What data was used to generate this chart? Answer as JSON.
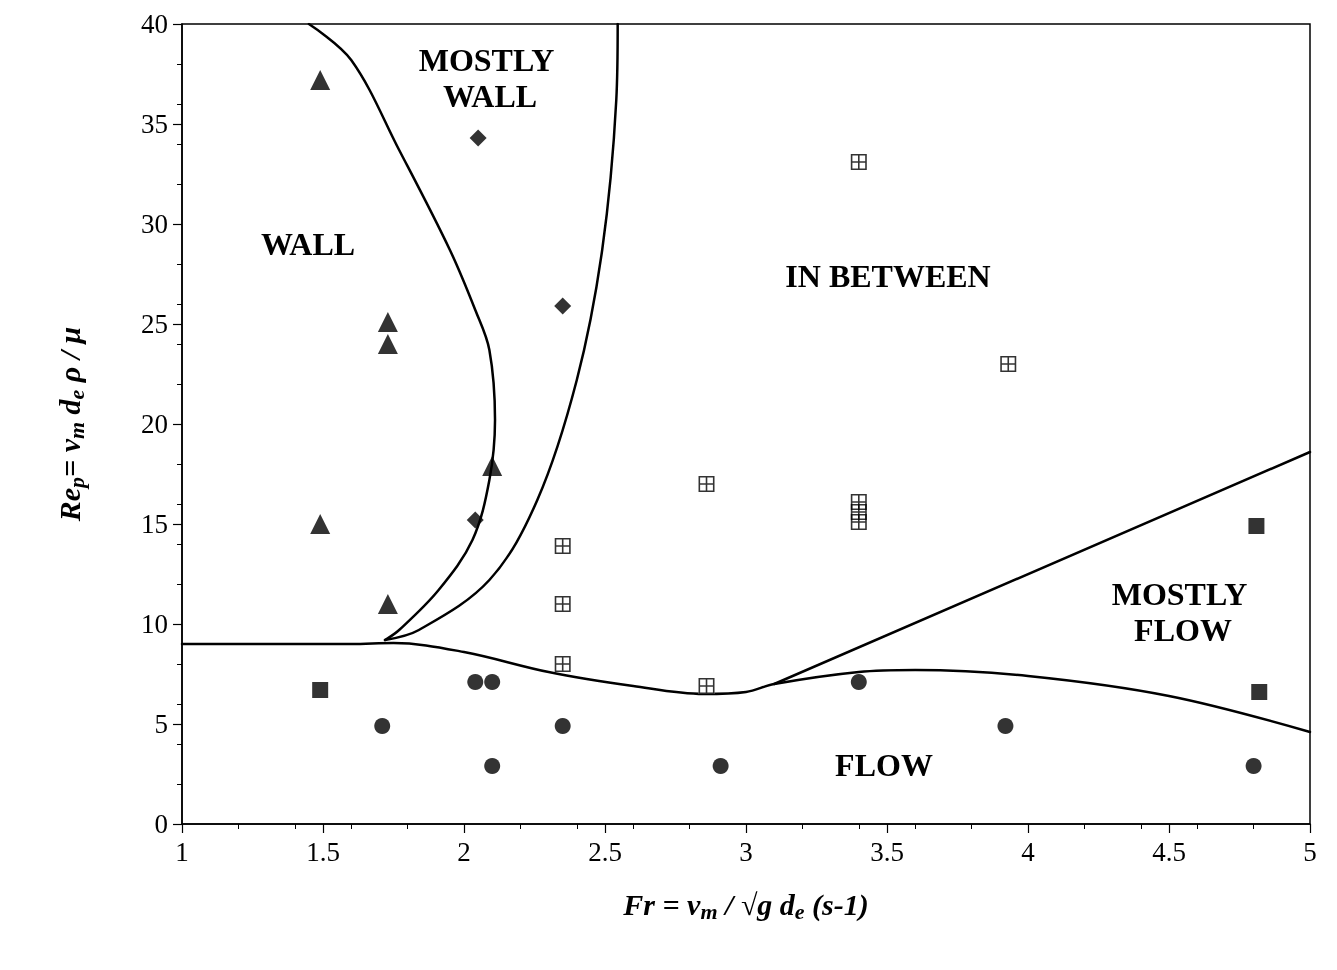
{
  "chart_data": {
    "type": "scatter",
    "xlabel": "Fr = v$_{m}$ / √g d$_{e}$ (s-1)",
    "ylabel": "Re$_{p}$= v$_{m}$ d$_{e}$ ρ / μ",
    "xlim": [
      1,
      5
    ],
    "xticks": [
      1,
      1.5,
      2,
      2.5,
      3,
      3.5,
      4,
      4.5,
      5
    ],
    "ylim": [
      0,
      40
    ],
    "yticks": [
      0,
      5,
      10,
      15,
      20,
      25,
      30,
      35,
      40
    ],
    "grid": false,
    "series": [
      {
        "marker": "triangle",
        "color": "#000000",
        "x": [
          1.49,
          1.73,
          1.73,
          2.1,
          1.49,
          1.73
        ],
        "values": [
          37.2,
          25.1,
          24.0,
          17.9,
          15.0,
          11.0
        ]
      },
      {
        "marker": "diamond",
        "color": "#000000",
        "x": [
          2.05,
          2.35,
          2.04
        ],
        "values": [
          34.3,
          25.9,
          15.2
        ]
      },
      {
        "marker": "cross",
        "color": "#000000",
        "x": [
          3.4,
          3.93,
          2.86,
          3.4,
          3.4,
          3.4,
          2.35,
          2.35,
          2.35,
          2.86
        ],
        "values": [
          33.1,
          23.0,
          17.0,
          16.1,
          15.6,
          15.1,
          13.9,
          11.0,
          8.0,
          6.9
        ]
      },
      {
        "marker": "square",
        "color": "#000000",
        "x": [
          4.81,
          4.82,
          1.49
        ],
        "values": [
          14.9,
          6.6,
          6.7
        ]
      },
      {
        "marker": "circle",
        "color": "#000000",
        "x": [
          1.71,
          2.04,
          2.1,
          2.1,
          2.35,
          2.91,
          3.4,
          3.92,
          4.8
        ],
        "values": [
          4.9,
          7.1,
          7.1,
          2.9,
          4.9,
          2.9,
          7.1,
          4.9,
          2.9
        ]
      },
      {
        "type": "line",
        "marker": "none",
        "color": "#000000",
        "x": [
          1.45,
          1.6,
          1.77,
          1.95,
          2.04,
          2.09,
          2.11,
          2.09,
          2.03,
          1.91,
          1.77,
          1.72
        ],
        "values": [
          40,
          38.2,
          33.7,
          28.7,
          25.7,
          23.7,
          20.2,
          17.2,
          14.2,
          11.7,
          9.7,
          9.2
        ]
      },
      {
        "type": "line",
        "marker": "none",
        "color": "#000000",
        "x": [
          1.72,
          1.84,
          2.09,
          2.26,
          2.4,
          2.49,
          2.54,
          2.545
        ],
        "values": [
          9.2,
          9.7,
          12.2,
          16.2,
          22.2,
          28.7,
          36.2,
          40
        ]
      },
      {
        "type": "line",
        "marker": "none",
        "color": "#000000",
        "x": [
          1,
          1.6,
          1.75,
          2.0,
          2.3,
          2.6,
          2.85,
          3.0,
          3.1,
          3.4,
          3.6,
          4.0,
          4.5,
          5
        ],
        "values": [
          9,
          9,
          9.05,
          8.6,
          7.6,
          6.9,
          6.5,
          6.6,
          7.0,
          7.6,
          7.7,
          7.4,
          6.4,
          4.6
        ]
      },
      {
        "type": "line",
        "marker": "none",
        "color": "#000000",
        "x": [
          3.1,
          5
        ],
        "values": [
          7.0,
          18.6
        ]
      }
    ],
    "annotations": [
      "WALL",
      "MOSTLY WALL",
      "IN BETWEEN",
      "MOSTLY FLOW",
      "FLOW"
    ]
  }
}
